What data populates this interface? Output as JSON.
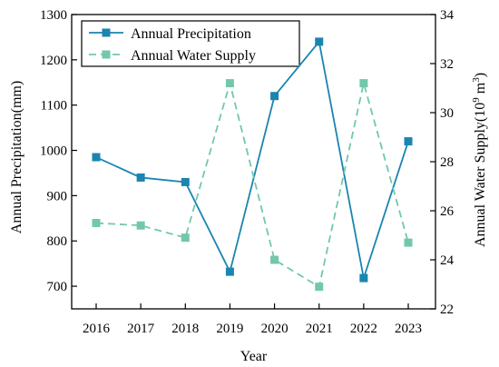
{
  "chart_data": {
    "type": "line",
    "xlabel": "Year",
    "categories": [
      "2016",
      "2017",
      "2018",
      "2019",
      "2020",
      "2021",
      "2022",
      "2023"
    ],
    "left_axis": {
      "label": "Annual Precipitation(mm)",
      "ylim": [
        650,
        1300
      ],
      "ticks": [
        700,
        800,
        900,
        1000,
        1100,
        1200,
        1300
      ]
    },
    "right_axis": {
      "label_main": "Annual Water Supply(10",
      "label_sup": "9",
      "label_unit": " m",
      "label_sup2": "3",
      "label_close": ")",
      "ylim": [
        22,
        34
      ],
      "ticks": [
        22,
        24,
        26,
        28,
        30,
        32,
        34
      ]
    },
    "series": [
      {
        "name": "Annual Precipitation",
        "axis": "left",
        "color": "#1a85b0",
        "dash": "solid",
        "marker": "square",
        "values": [
          985,
          940,
          930,
          732,
          1120,
          1240,
          718,
          1020
        ]
      },
      {
        "name": "Annual Water Supply",
        "axis": "right",
        "color": "#72c7ac",
        "dash": "dashed",
        "marker": "square",
        "values": [
          25.5,
          25.4,
          24.9,
          31.2,
          24.0,
          22.9,
          31.2,
          24.7
        ]
      }
    ],
    "legend_position": "top-left",
    "grid": false
  }
}
